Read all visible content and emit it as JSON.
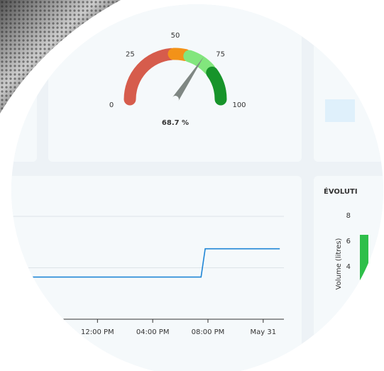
{
  "chart_data": [
    {
      "type": "gauge",
      "value": 68.7,
      "value_label": "68.7 %",
      "ylim": [
        0,
        100
      ],
      "yticks": [
        0,
        25,
        50,
        75,
        100
      ],
      "bands": [
        {
          "from": 0,
          "to": 47,
          "color": "#d65c4c"
        },
        {
          "from": 49,
          "to": 57,
          "color": "#f39218"
        },
        {
          "from": 60,
          "to": 77,
          "color": "#82e67d"
        },
        {
          "from": 80,
          "to": 100,
          "color": "#17942a"
        }
      ],
      "needle_color": "#7f8783"
    },
    {
      "type": "line",
      "x": [
        7,
        19.5,
        19.8,
        25.2
      ],
      "values": [
        0.82,
        0.82,
        1.37,
        1.37
      ],
      "color": "#1f86d6",
      "xlim": [
        5.2,
        25.5
      ],
      "ylim": [
        0,
        2
      ],
      "xticks": [
        {
          "value": 12,
          "label": "12:00 PM"
        },
        {
          "value": 16,
          "label": "04:00 PM"
        },
        {
          "value": 20,
          "label": "08:00 PM"
        },
        {
          "value": 24,
          "label": "May 31"
        }
      ],
      "grid": true
    },
    {
      "type": "bar",
      "title": "ÉVOLUTI",
      "y_label": "Volume (litres)",
      "categories": [
        null
      ],
      "values": [
        6.5
      ],
      "color": "#2fbf4a",
      "ylim": [
        2.5,
        9
      ],
      "yticks": [
        4,
        6,
        8
      ]
    }
  ]
}
